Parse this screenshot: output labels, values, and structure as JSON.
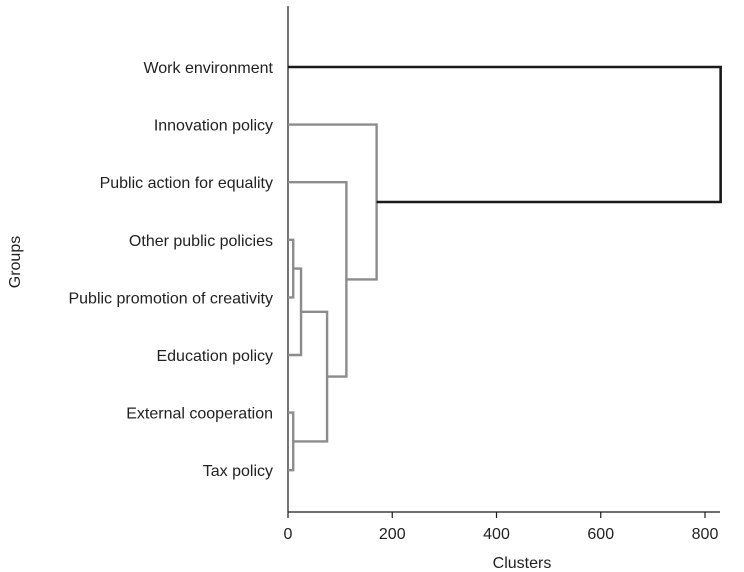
{
  "chart_data": {
    "type": "dendrogram",
    "orientation": "horizontal",
    "xlabel": "Clusters",
    "ylabel": "Groups",
    "xlim": [
      0,
      850
    ],
    "xticks": [
      0,
      200,
      400,
      600,
      800
    ],
    "groups": [
      "Work environment",
      "Innovation policy",
      "Public action for equality",
      "Other public policies",
      "Public promotion of creativity",
      "Education policy",
      "External cooperation",
      "Tax policy"
    ],
    "merges": [
      {
        "left": "External cooperation",
        "right": "Tax policy",
        "height": 10
      },
      {
        "left": "Other public policies",
        "right": "Public promotion of creativity",
        "height": 10
      },
      {
        "left": "C2",
        "right": "Education policy",
        "height": 25
      },
      {
        "left": "C3",
        "right": "C1",
        "height": 75
      },
      {
        "left": "Public action for equality",
        "right": "C4",
        "height": 112
      },
      {
        "left": "Innovation policy",
        "right": "C5",
        "height": 170
      },
      {
        "left": "Work environment",
        "right": "C6",
        "height": 830
      }
    ],
    "colors": {
      "top_cluster": "#1a1a1a",
      "sub_clusters": "#8c8c8c",
      "axis": "#1a1a1a"
    }
  }
}
